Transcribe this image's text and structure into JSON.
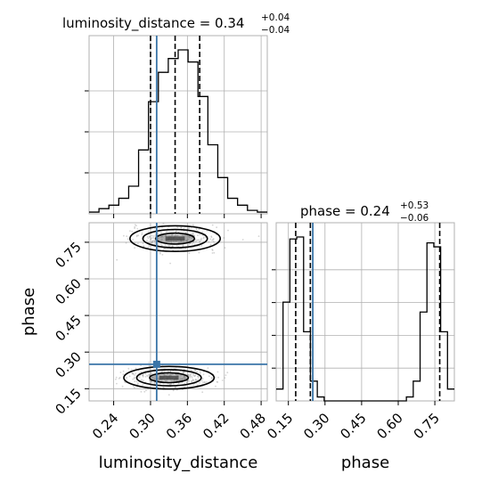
{
  "chart_data": {
    "type": "corner",
    "parameters": [
      "luminosity_distance",
      "phase"
    ],
    "truths": {
      "luminosity_distance": 0.31,
      "phase": 0.25
    },
    "titles": [
      {
        "label": "luminosity_distance",
        "prefix": "luminosity_distance = ",
        "median": "0.34",
        "plus": "+0.04",
        "minus": "−0.04"
      },
      {
        "label": "phase",
        "prefix": "phase = ",
        "median": "0.24",
        "plus": "+0.53",
        "minus": "−0.06"
      }
    ],
    "xticks": {
      "luminosity_distance": [
        "0.24",
        "0.30",
        "0.36",
        "0.42",
        "0.48"
      ],
      "phase": [
        "0.15",
        "0.30",
        "0.45",
        "0.60",
        "0.75"
      ]
    },
    "yticks": {
      "phase": [
        "0.15",
        "0.30",
        "0.45",
        "0.60",
        "0.75"
      ]
    },
    "xlabels": [
      "luminosity_distance",
      "phase"
    ],
    "ylabels": [
      "phase"
    ],
    "hist_luminosity_distance": {
      "range": [
        0.2,
        0.49
      ],
      "counts": [
        1,
        3,
        5,
        9,
        16,
        37,
        65,
        82,
        90,
        95,
        88,
        68,
        40,
        21,
        9,
        5,
        2,
        1
      ],
      "quantiles": [
        0.3,
        0.34,
        0.38
      ]
    },
    "hist_phase": {
      "range": [
        0.1,
        0.83
      ],
      "counts": [
        6,
        50,
        82,
        83,
        35,
        10,
        2,
        0,
        0,
        0,
        0,
        0,
        0,
        0,
        0,
        0,
        0,
        0,
        0,
        2,
        10,
        45,
        80,
        78,
        35,
        6
      ],
      "quantiles": [
        0.18,
        0.24,
        0.77
      ]
    },
    "modes_2d": [
      {
        "x": 0.34,
        "y": 0.765,
        "sx": 0.035,
        "sy": 0.025
      },
      {
        "x": 0.33,
        "y": 0.195,
        "sx": 0.035,
        "sy": 0.022
      }
    ]
  }
}
